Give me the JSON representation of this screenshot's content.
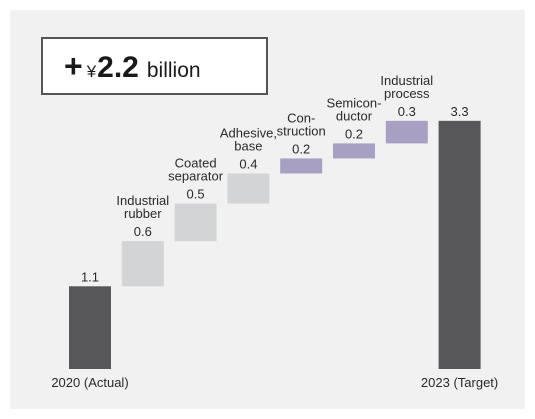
{
  "callout": {
    "plus": "+",
    "currency": "¥",
    "amount": "2.2",
    "unit": "billion"
  },
  "colors": {
    "total_bar": "#575759",
    "step_light": "#d3d4d6",
    "step_purple": "#a7a0c2",
    "panel_bg": "#f1f1f2"
  },
  "chart_data": {
    "type": "bar",
    "subtype": "waterfall",
    "title": "",
    "xlabel": "",
    "ylabel": "",
    "ylim": [
      0,
      3.6
    ],
    "grid": false,
    "categories": [
      "2020 (Actual)",
      "Industrial rubber",
      "Coated separator",
      "Adhesive, base",
      "Construction",
      "Semiconductor",
      "Industrial process",
      "2023 (Target)"
    ],
    "category_lines": [
      [],
      [
        "Industrial",
        "rubber"
      ],
      [
        "Coated",
        "separator"
      ],
      [
        "Adhesive,",
        "base"
      ],
      [
        "Con-",
        "struction"
      ],
      [
        "Semicon-",
        "ductor"
      ],
      [
        "Industrial",
        "process"
      ],
      []
    ],
    "axis_labels": [
      "2020 (Actual)",
      "",
      "",
      "",
      "",
      "",
      "",
      "2023 (Target)"
    ],
    "values": [
      1.1,
      0.6,
      0.5,
      0.4,
      0.2,
      0.2,
      0.3,
      3.3
    ],
    "value_labels": [
      "1.1",
      "0.6",
      "0.5",
      "0.4",
      "0.2",
      "0.2",
      "0.3",
      "3.3"
    ],
    "kinds": [
      "total",
      "increase",
      "increase",
      "increase",
      "increase",
      "increase",
      "increase",
      "total"
    ],
    "color_keys": [
      "total_bar",
      "step_light",
      "step_light",
      "step_light",
      "step_purple",
      "step_purple",
      "step_purple",
      "total_bar"
    ]
  }
}
